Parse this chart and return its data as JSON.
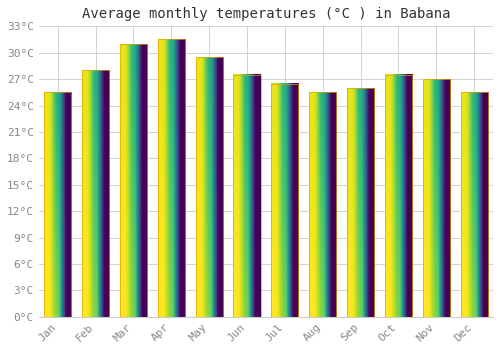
{
  "title": "Average monthly temperatures (°C ) in Babana",
  "months": [
    "Jan",
    "Feb",
    "Mar",
    "Apr",
    "May",
    "Jun",
    "Jul",
    "Aug",
    "Sep",
    "Oct",
    "Nov",
    "Dec"
  ],
  "values": [
    25.5,
    28.0,
    31.0,
    31.5,
    29.5,
    27.5,
    26.5,
    25.5,
    26.0,
    27.5,
    27.0,
    25.5
  ],
  "bar_color_top": "#FFC107",
  "bar_color_bottom": "#F5A623",
  "background_color": "#FFFFFF",
  "grid_color": "#CCCCCC",
  "text_color": "#888888",
  "ylim": [
    0,
    33
  ],
  "yticks": [
    0,
    3,
    6,
    9,
    12,
    15,
    18,
    21,
    24,
    27,
    30,
    33
  ],
  "title_fontsize": 10,
  "tick_fontsize": 8,
  "font_family": "monospace"
}
